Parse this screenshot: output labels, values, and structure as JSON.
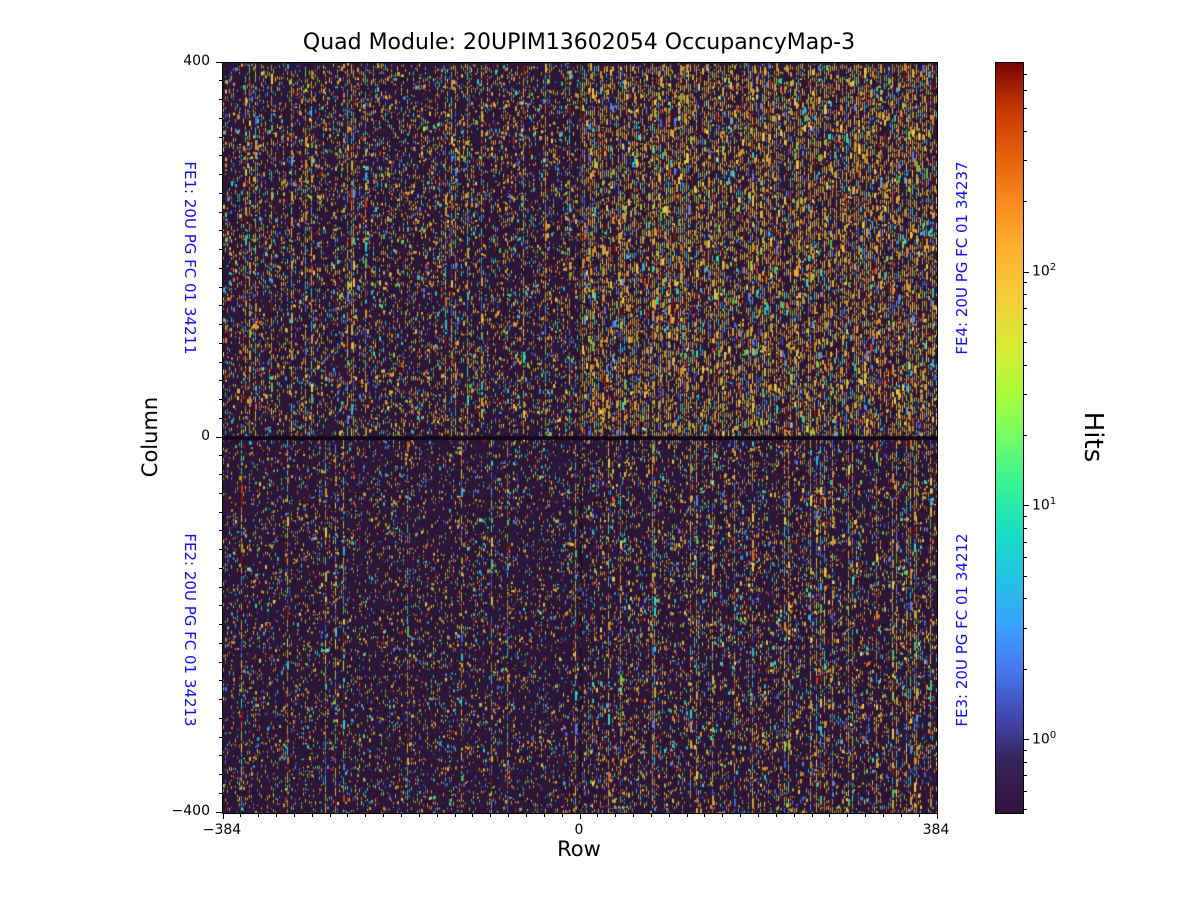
{
  "title": "Quad Module: 20UPIM13602054 OccupancyMap-3",
  "axes": {
    "xlabel": "Row",
    "ylabel": "Column",
    "x_tick_labels": [
      "−384",
      "0",
      "384"
    ],
    "y_tick_labels": [
      "400",
      "0",
      "−400"
    ],
    "minor_divisions": 40
  },
  "annotations": {
    "color": "#0d0de8",
    "fe1": {
      "text": "FE1: 20U PG FC 01 34211",
      "position": "left-top"
    },
    "fe2": {
      "text": "FE2: 20U PG FC 01 34213",
      "position": "left-bottom"
    },
    "fe3": {
      "text": "FE3: 20U PG FC 01 34212",
      "position": "right-bottom"
    },
    "fe4": {
      "text": "FE4: 20U PG FC 01 34237",
      "position": "right-top"
    }
  },
  "colorbar": {
    "label": "Hits",
    "scale": "log",
    "vmin": 0.49,
    "vmax": 794,
    "major_ticks": [
      {
        "value": 100,
        "base": "10",
        "exp": "2"
      },
      {
        "value": 10,
        "base": "10",
        "exp": "1"
      },
      {
        "value": 1,
        "base": "10",
        "exp": "0"
      }
    ],
    "colormap": "turbo",
    "stops": [
      {
        "t": 0.0,
        "c": "#30123b"
      },
      {
        "t": 0.07,
        "c": "#38245c"
      },
      {
        "t": 0.125,
        "c": "#4145ab"
      },
      {
        "t": 0.1875,
        "c": "#4675ed"
      },
      {
        "t": 0.25,
        "c": "#39a2fc"
      },
      {
        "t": 0.3125,
        "c": "#23c3e4"
      },
      {
        "t": 0.375,
        "c": "#18ddc2"
      },
      {
        "t": 0.4375,
        "c": "#36f295"
      },
      {
        "t": 0.5,
        "c": "#71fd66"
      },
      {
        "t": 0.5625,
        "c": "#aefa37"
      },
      {
        "t": 0.625,
        "c": "#d9e936"
      },
      {
        "t": 0.6875,
        "c": "#f4cd38"
      },
      {
        "t": 0.75,
        "c": "#feb130"
      },
      {
        "t": 0.8125,
        "c": "#f98b1d"
      },
      {
        "t": 0.875,
        "c": "#e5600c"
      },
      {
        "t": 0.9375,
        "c": "#c93803"
      },
      {
        "t": 1.0,
        "c": "#7a0403"
      }
    ]
  },
  "chart_data": {
    "type": "heatmap",
    "title": "Quad Module: 20UPIM13602054 OccupancyMap-3",
    "xlabel": "Row",
    "ylabel": "Column",
    "x_range": [
      -384,
      384
    ],
    "y_range": [
      -400,
      400
    ],
    "x_major_ticks": [
      -384,
      0,
      384
    ],
    "y_major_ticks": [
      -400,
      0,
      400
    ],
    "value_label": "Hits",
    "value_scale": "log",
    "value_range": [
      0.49,
      794
    ],
    "background": "#2c1638",
    "mottle_dark": "#1e0c28",
    "mottle_light": "#43285c",
    "seam_color": "rgba(16,5,22,0.9)",
    "palette": {
      "warm": [
        "#dfae3a",
        "#c2a636",
        "#d4882e",
        "#a8922f",
        "#e6c945",
        "#cf9a33"
      ],
      "cool": [
        "#2fc0b0",
        "#38abdf",
        "#3f64d8",
        "#54ba4e",
        "#8cc93f",
        "#5b7de2",
        "#27d8c0"
      ],
      "rare": [
        "#c23d22",
        "#8a1505",
        "#e06020"
      ]
    },
    "quadrants": [
      {
        "name": "FE1",
        "chip": "20U PG FC 01 34211",
        "region": "top-left",
        "x0": 0.0,
        "x1": 0.5,
        "y0": 0.0,
        "y1": 0.5,
        "density": 0.42,
        "dash": 4,
        "stripe_prob": 0.1,
        "warm": 0.58
      },
      {
        "name": "FE4",
        "chip": "20U PG FC 01 34237",
        "region": "top-right",
        "x0": 0.5,
        "x1": 1.0,
        "y0": 0.0,
        "y1": 0.5,
        "density": 0.55,
        "dash": 7,
        "stripe_prob": 0.3,
        "warm": 0.72
      },
      {
        "name": "FE2",
        "chip": "20U PG FC 01 34213",
        "region": "bottom-left",
        "x0": 0.0,
        "x1": 0.5,
        "y0": 0.5,
        "y1": 1.0,
        "density": 0.31,
        "dash": 3,
        "stripe_prob": 0.05,
        "warm": 0.52
      },
      {
        "name": "FE3",
        "chip": "20U PG FC 01 34212",
        "region": "bottom-right",
        "x0": 0.5,
        "x1": 1.0,
        "y0": 0.5,
        "y1": 1.0,
        "density": 0.38,
        "dash": 4,
        "stripe_prob": 0.12,
        "warm": 0.58
      }
    ]
  }
}
